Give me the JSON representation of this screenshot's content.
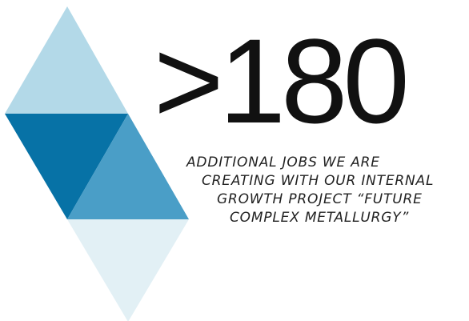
{
  "stat": {
    "value": ">180"
  },
  "caption": {
    "lines": [
      "ADDITIONAL JOBS WE ARE",
      "CREATING WITH OUR INTERNAL",
      "GROWTH PROJECT “FUTURE",
      "COMPLEX METALLURGY”"
    ]
  },
  "colors": {
    "top_triangle": "#b3d9e8",
    "dark_triangle": "#0772a6",
    "mid_triangle": "#4a9ec7",
    "bottom_triangle": "#e2f0f5",
    "text": "#111111"
  }
}
